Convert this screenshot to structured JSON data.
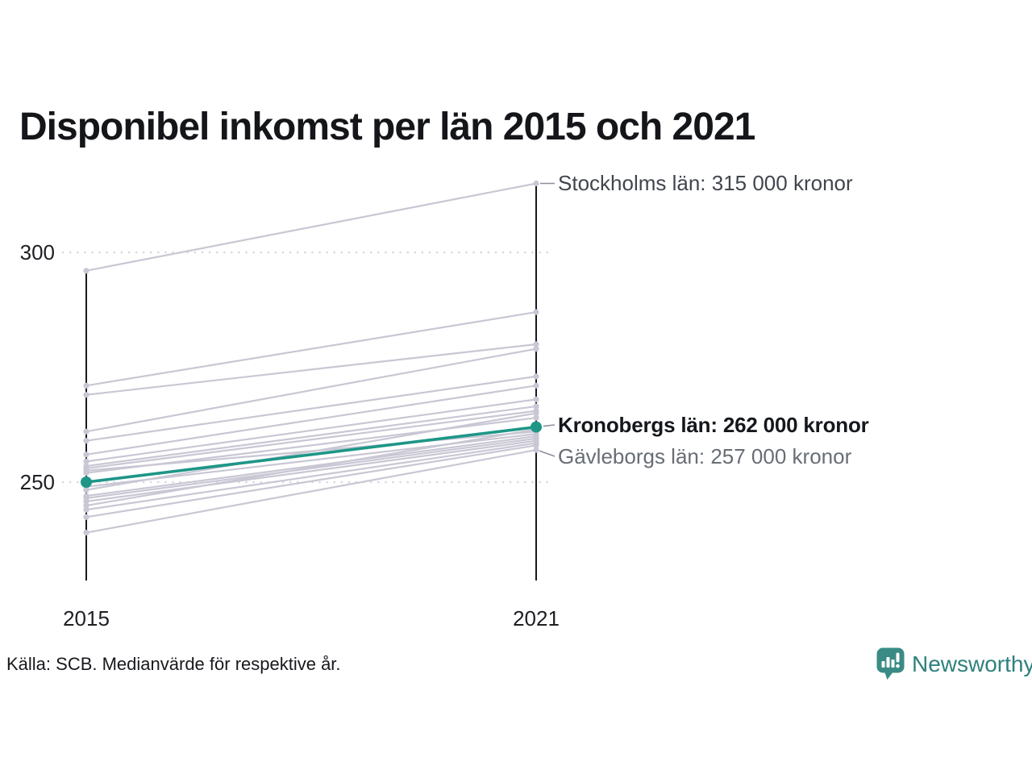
{
  "chart_data": {
    "type": "line",
    "subtype": "slopegraph",
    "title": "Disponibel inkomst per län 2015 och 2021",
    "x": [
      2015,
      2021
    ],
    "x_tick_labels": [
      "2015",
      "2021"
    ],
    "y_tick_labels": [
      "300",
      "250"
    ],
    "y_gridlines": [
      300,
      250
    ],
    "ylim": [
      235,
      320
    ],
    "grid": "dotted-horizontal",
    "legend": "none",
    "source": "Källa: SCB. Medianvärde för respektive år.",
    "series": [
      {
        "name": "Stockholms län",
        "values": [
          296,
          315
        ],
        "highlight": false
      },
      {
        "name": null,
        "values": [
          271,
          287
        ],
        "highlight": false
      },
      {
        "name": null,
        "values": [
          269,
          280
        ],
        "highlight": false
      },
      {
        "name": null,
        "values": [
          261,
          279
        ],
        "highlight": false
      },
      {
        "name": null,
        "values": [
          259,
          273
        ],
        "highlight": false
      },
      {
        "name": null,
        "values": [
          256,
          271
        ],
        "highlight": false
      },
      {
        "name": null,
        "values": [
          254.5,
          268
        ],
        "highlight": false
      },
      {
        "name": null,
        "values": [
          253.5,
          266.5
        ],
        "highlight": false
      },
      {
        "name": null,
        "values": [
          253,
          265.5
        ],
        "highlight": false
      },
      {
        "name": null,
        "values": [
          252.5,
          261
        ],
        "highlight": false
      },
      {
        "name": null,
        "values": [
          252,
          264
        ],
        "highlight": false
      },
      {
        "name": "Kronobergs län",
        "values": [
          250,
          262
        ],
        "highlight": true
      },
      {
        "name": null,
        "values": [
          249,
          260.5
        ],
        "highlight": false
      },
      {
        "name": null,
        "values": [
          248.3,
          265
        ],
        "highlight": false
      },
      {
        "name": null,
        "values": [
          247,
          260
        ],
        "highlight": false
      },
      {
        "name": null,
        "values": [
          246.5,
          259.5
        ],
        "highlight": false
      },
      {
        "name": null,
        "values": [
          245.8,
          259
        ],
        "highlight": false
      },
      {
        "name": null,
        "values": [
          244.9,
          261.5
        ],
        "highlight": false
      },
      {
        "name": null,
        "values": [
          244,
          258.5
        ],
        "highlight": false
      },
      {
        "name": null,
        "values": [
          242.4,
          258
        ],
        "highlight": false
      },
      {
        "name": "Gävleborgs län",
        "values": [
          239,
          257
        ],
        "highlight": false
      }
    ],
    "annotations": [
      {
        "series": "Stockholms län",
        "text": "Stockholms län: 315 000 kronor"
      },
      {
        "series": "Kronobergs län",
        "text": "Kronobergs län: 262 000 kronor"
      },
      {
        "series": "Gävleborgs län",
        "text": "Gävleborgs län: 257 000 kronor"
      }
    ],
    "colors": {
      "line": "#c9c7d4",
      "highlight": "#1d9687",
      "axis": "#17191d",
      "grid_dots": "#d9d8df",
      "connector": "#8d909a"
    }
  },
  "branding": {
    "logo_text": "Newsworthy",
    "logo_icon": "bar-chart-speech-bubble-icon",
    "logo_color": "#2e817d",
    "logo_icon_color": "#3a8b85"
  }
}
